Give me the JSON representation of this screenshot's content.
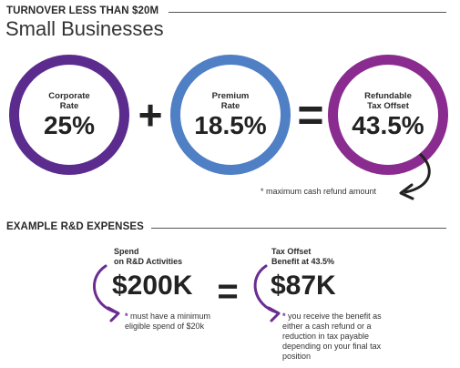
{
  "header": {
    "section_title": "TURNOVER LESS THAN $20M",
    "subtitle": "Small Businesses"
  },
  "rates": {
    "corporate": {
      "label_line1": "Corporate",
      "label_line2": "Rate",
      "value": "25%"
    },
    "operator_plus": "+",
    "premium": {
      "label_line1": "Premium",
      "label_line2": "Rate",
      "value": "18.5%"
    },
    "operator_equals": "=",
    "refundable": {
      "label_line1": "Refundable",
      "label_line2": "Tax Offset",
      "value": "43.5%"
    },
    "footnote": "* maximum cash refund amount"
  },
  "example": {
    "section_title": "EXAMPLE R&D EXPENSES",
    "spend": {
      "label_line1": "Spend",
      "label_line2": "on R&D Activities",
      "value": "$200K",
      "note_star": "*",
      "note_line1": "must have a minimum",
      "note_line2": "eligible spend of $20k"
    },
    "operator_equals": "=",
    "offset": {
      "label_line1": "Tax Offset",
      "label_line2": "Benefit at 43.5%",
      "value": "$87K",
      "note_star": "*",
      "note_line1": "you receive the benefit as",
      "note_line2": "either a cash refund or a",
      "note_line3": "reduction in tax payable",
      "note_line4": "depending on your final tax",
      "note_line5": "position"
    }
  },
  "colors": {
    "purple": "#5b2c8e",
    "blue": "#4f7fc4",
    "magenta": "#8a2b90",
    "text": "#222222"
  }
}
